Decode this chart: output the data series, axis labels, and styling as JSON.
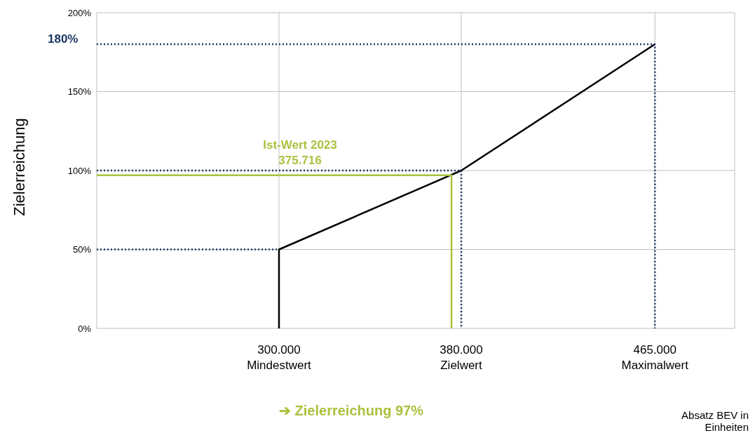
{
  "chart_data": {
    "type": "line",
    "ylabel": "Zielerreichung",
    "xlabel": "Absatz BEV in Einheiten",
    "xlim": [
      220000,
      500000
    ],
    "xticks": [
      {
        "value": 300000,
        "label": "300.000\nMindestwert"
      },
      {
        "value": 380000,
        "label": "380.000\nZielwert"
      },
      {
        "value": 465000,
        "label": "465.000\nMaximalwert"
      }
    ],
    "ylim": [
      0,
      200
    ],
    "yticks": [
      {
        "value": 0,
        "label": "0%"
      },
      {
        "value": 50,
        "label": "50%"
      },
      {
        "value": 100,
        "label": "100%"
      },
      {
        "value": 150,
        "label": "150%"
      },
      {
        "value": 200,
        "label": "200%"
      }
    ],
    "grid": true,
    "marker": "none",
    "series": [
      {
        "color": "#000000",
        "x": [
          300000,
          300000,
          380000,
          465000
        ],
        "values": [
          0,
          50,
          100,
          180
        ],
        "line_style": "solid"
      },
      {
        "color": "#a9c23f",
        "x": [
          220000,
          375716,
          375716
        ],
        "values": [
          97,
          97,
          0
        ],
        "line_style": "solid"
      },
      {
        "color": "#1f3864",
        "x": [
          220000,
          300000
        ],
        "values": [
          50,
          50
        ],
        "line_style": "dotted"
      },
      {
        "color": "#1f3864",
        "x": [
          220000,
          380000,
          380000
        ],
        "values": [
          100,
          100,
          0
        ],
        "line_style": "dotted"
      },
      {
        "color": "#1f3864",
        "x": [
          220000,
          465000,
          465000
        ],
        "values": [
          180,
          180,
          0
        ],
        "line_style": "dotted"
      }
    ],
    "annotations": [
      {
        "text": "180%",
        "x": 220000,
        "y": 180
      },
      "Ist-Wert 2023\n375.716",
      "➔ Zielerreichung 97%"
    ]
  }
}
